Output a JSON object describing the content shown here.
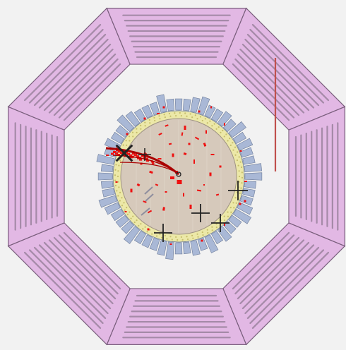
{
  "colors": {
    "background": "#f2f2f2",
    "muon_chamber_fill": "#e2b8e4",
    "muon_chamber_stroke": "#7a5f7d",
    "muon_strip": "#a58aa8",
    "muon_inner_gap": "#d9d9d9",
    "calorimeter_module_fill": "#a9b8d6",
    "calorimeter_module_stroke": "#6d7c99",
    "tracker_ring_fill": "#ece8a8",
    "tracker_ring_dot": "#c6be6a",
    "inner_disk_fill": "#d6c9bb",
    "inner_disk_stroke": "#9f9384",
    "energy_hit": "#ee1111",
    "track_line": "#aa0000",
    "jet_marker": "#222222",
    "annotation_bar": "#c0504d"
  },
  "icons": {
    "muon_system": "octagon-chamber-ring",
    "jet_axis": "cross-marker",
    "vertex": "circle-marker"
  }
}
